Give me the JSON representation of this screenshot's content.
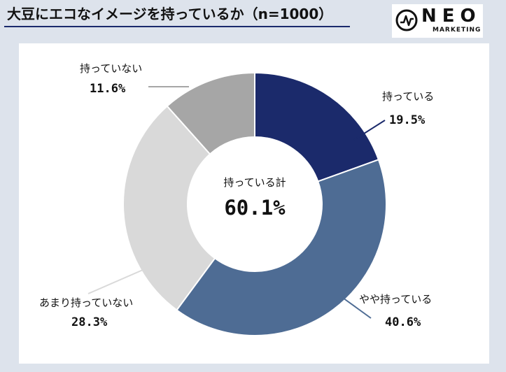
{
  "title": "大豆にエコなイメージを持っているか（n=1000）",
  "logo": {
    "brand": "NEO",
    "sub": "MARKETING"
  },
  "chart_data": {
    "type": "pie",
    "donut": true,
    "categories": [
      "持っている",
      "やや持っている",
      "あまり持っていない",
      "持っていない"
    ],
    "values": [
      19.5,
      40.6,
      28.3,
      11.6
    ],
    "value_labels": [
      "19.5%",
      "40.6%",
      "28.3%",
      "11.6%"
    ],
    "colors": [
      "#1b2a6b",
      "#4e6c94",
      "#d9d9d9",
      "#a6a6a6"
    ],
    "center_label": "持っている計",
    "center_value": "60.1%",
    "legend": "none"
  }
}
